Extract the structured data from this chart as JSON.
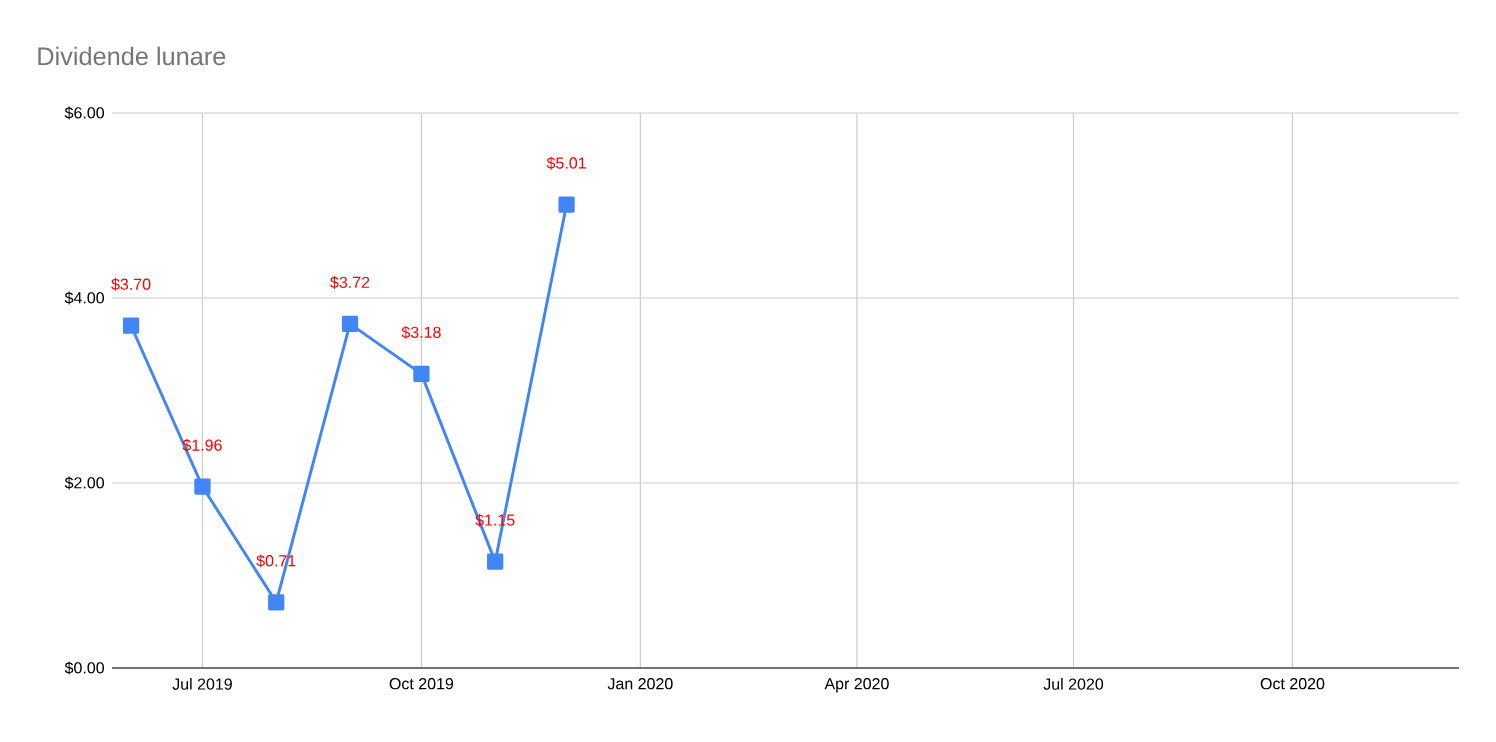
{
  "chart_data": {
    "type": "line",
    "title": "Dividende lunare",
    "x": [
      "2019-06-01",
      "2019-07-01",
      "2019-08-01",
      "2019-09-01",
      "2019-10-01",
      "2019-11-01",
      "2019-12-01"
    ],
    "series": [
      {
        "color": "#4285f4",
        "values": [
          3.7,
          1.96,
          0.71,
          3.72,
          3.18,
          1.15,
          5.01
        ],
        "value_labels": [
          "$3.70",
          "$1.96",
          "$0.71",
          "$3.72",
          "$3.18",
          "$1.15",
          "$5.01"
        ]
      }
    ],
    "xlim": [
      "2019-05-24",
      "2020-12-10"
    ],
    "xticks": [
      {
        "value": "2019-07-01",
        "label": "Jul 2019"
      },
      {
        "value": "2019-10-01",
        "label": "Oct 2019"
      },
      {
        "value": "2020-01-01",
        "label": "Jan 2020"
      },
      {
        "value": "2020-04-01",
        "label": "Apr 2020"
      },
      {
        "value": "2020-07-01",
        "label": "Jul 2020"
      },
      {
        "value": "2020-10-01",
        "label": "Oct 2020"
      }
    ],
    "ylim": [
      0,
      6
    ],
    "yticks": [
      {
        "value": 0,
        "label": "$0.00"
      },
      {
        "value": 2,
        "label": "$2.00"
      },
      {
        "value": 4,
        "label": "$4.00"
      },
      {
        "value": 6,
        "label": "$6.00"
      }
    ],
    "grid": true,
    "marker": "square",
    "line_style": "solid"
  }
}
